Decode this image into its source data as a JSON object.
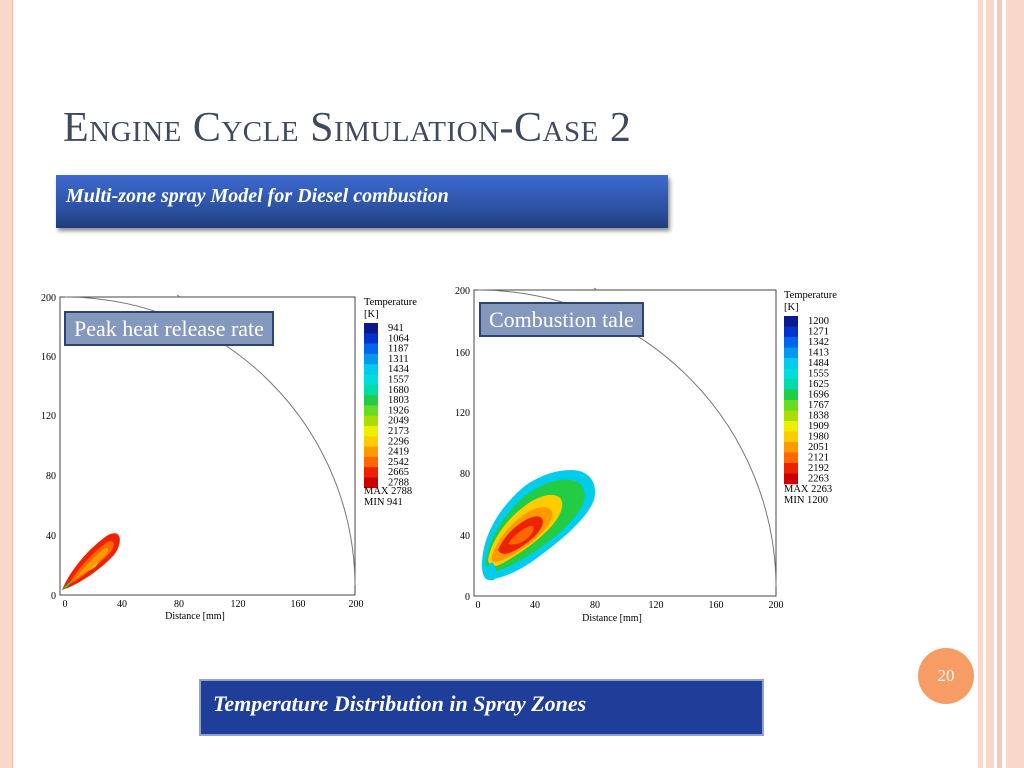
{
  "slide": {
    "title": "Engine Cycle Simulation-Case 2",
    "subtitle": "Multi-zone spray Model for Diesel combustion",
    "caption": "Temperature Distribution in Spray Zones",
    "page_number": "20",
    "colors": {
      "title": "#404a5e",
      "subtitle_bg": "#2a4f9c",
      "caption_bg": "#1f3e9a",
      "page_badge": "#f89c66",
      "border": "#f9d8cc"
    }
  },
  "plots": [
    {
      "label": "Peak heat release rate",
      "x_ticks": [
        "0",
        "40",
        "80",
        "120",
        "160",
        "200"
      ],
      "y_ticks": [
        "200",
        "160",
        "120",
        "80",
        "40",
        "0"
      ],
      "xlabel": "Distance [mm]",
      "colorbar_title": "Temperature",
      "colorbar_unit": "[K]",
      "colorbar_values": [
        "941",
        "1064",
        "1187",
        "1311",
        "1434",
        "1557",
        "1680",
        "1803",
        "1926",
        "2049",
        "2173",
        "2296",
        "2419",
        "2542",
        "2665",
        "2788"
      ],
      "max_text": "MAX  2788",
      "min_text": "MIN   941"
    },
    {
      "label": "Combustion tale",
      "x_ticks": [
        "0",
        "40",
        "80",
        "120",
        "160",
        "200"
      ],
      "y_ticks": [
        "200",
        "160",
        "120",
        "80",
        "40",
        "0"
      ],
      "xlabel": "Distance [mm]",
      "colorbar_title": "Temperature",
      "colorbar_unit": "[K]",
      "colorbar_values": [
        "1200",
        "1271",
        "1342",
        "1413",
        "1484",
        "1555",
        "1625",
        "1696",
        "1767",
        "1838",
        "1909",
        "1980",
        "2051",
        "2121",
        "2192",
        "2263"
      ],
      "max_text": "MAX  2263",
      "min_text": "MIN   1200"
    }
  ],
  "colorbar_colors": [
    "#0a1a8c",
    "#0033cc",
    "#0066ee",
    "#0099ee",
    "#00ccee",
    "#00dddd",
    "#00ddaa",
    "#22cc44",
    "#66dd22",
    "#aadd00",
    "#eeee00",
    "#ffcc00",
    "#ff9900",
    "#ff6600",
    "#ee2200",
    "#cc0000"
  ]
}
